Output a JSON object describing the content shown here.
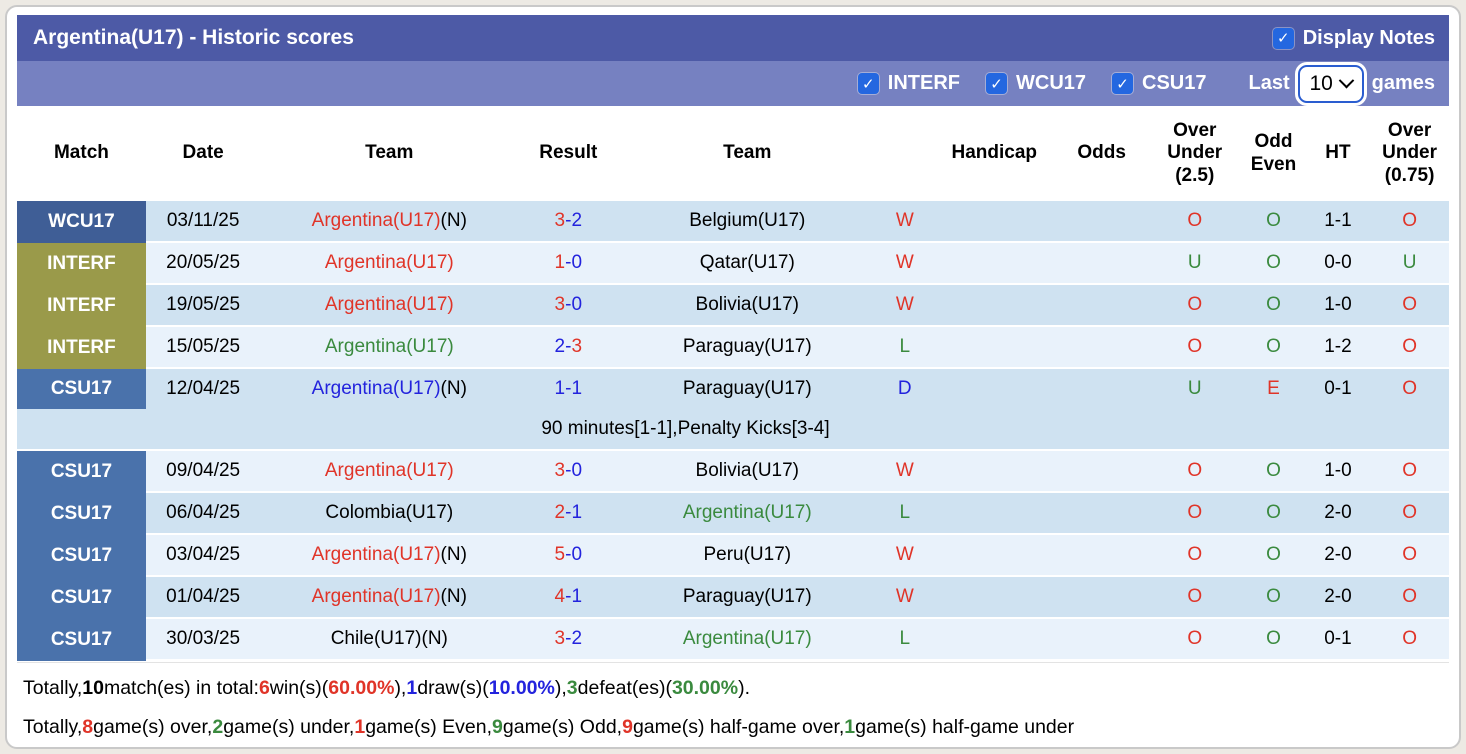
{
  "header": {
    "title": "Argentina(U17) - Historic scores",
    "display_notes_label": "Display Notes"
  },
  "filter_bar": {
    "checkboxes": [
      {
        "label": "INTERF",
        "checked": true
      },
      {
        "label": "WCU17",
        "checked": true
      },
      {
        "label": "CSU17",
        "checked": true
      }
    ],
    "last_label": "Last",
    "games_count": "10",
    "games_label": "games"
  },
  "icons": {
    "checkmark": "✓"
  },
  "colors": {
    "bar_top": "#4d5aa6",
    "bar_filters": "#7681c1",
    "checkbox_blue": "#2467e0",
    "row_dark": "#cfe2f1",
    "row_light": "#e9f2fb",
    "badges": {
      "WCU17": "#3f5e96",
      "INTERF": "#9a9a4a",
      "CSU17": "#4a72ab"
    },
    "tokens": {
      "r": "#e03428",
      "g": "#3a8a3e",
      "b": "#2323dd",
      "k": "#000000"
    }
  },
  "table": {
    "headers": [
      "Match",
      "Date",
      "Team",
      "Result",
      "Team",
      "",
      "Handicap",
      "Odds",
      "Over Under (2.5)",
      "Odd Even",
      "HT",
      "Over Under (0.75)"
    ],
    "col_widths": [
      "9%",
      "8%",
      "18%",
      "7%",
      "18%",
      "4%",
      "8.5%",
      "6.5%",
      "6.5%",
      "4.5%",
      "4.5%",
      "5.5%"
    ],
    "rows": [
      {
        "league": "WCU17",
        "date": "03/11/25",
        "home": {
          "name": "Argentina(U17)",
          "suffix": "(N)",
          "color": "r"
        },
        "score": {
          "home": "3",
          "away": "2",
          "home_color": "r",
          "away_color": "b"
        },
        "away": {
          "name": "Belgium(U17)",
          "suffix": "",
          "color": "k"
        },
        "letter": "W",
        "letter_color": "r",
        "handicap": "",
        "odds": "",
        "over_under_25": "O",
        "over_under_25_color": "r",
        "odd_even": "O",
        "odd_even_color": "g",
        "ht": "1-1",
        "over_under_075": "O",
        "over_under_075_color": "r",
        "shade": "dark",
        "note": ""
      },
      {
        "league": "INTERF",
        "date": "20/05/25",
        "home": {
          "name": "Argentina(U17)",
          "suffix": "",
          "color": "r"
        },
        "score": {
          "home": "1",
          "away": "0",
          "home_color": "r",
          "away_color": "b"
        },
        "away": {
          "name": "Qatar(U17)",
          "suffix": "",
          "color": "k"
        },
        "letter": "W",
        "letter_color": "r",
        "handicap": "",
        "odds": "",
        "over_under_25": "U",
        "over_under_25_color": "g",
        "odd_even": "O",
        "odd_even_color": "g",
        "ht": "0-0",
        "over_under_075": "U",
        "over_under_075_color": "g",
        "shade": "light",
        "note": ""
      },
      {
        "league": "INTERF",
        "date": "19/05/25",
        "home": {
          "name": "Argentina(U17)",
          "suffix": "",
          "color": "r"
        },
        "score": {
          "home": "3",
          "away": "0",
          "home_color": "r",
          "away_color": "b"
        },
        "away": {
          "name": "Bolivia(U17)",
          "suffix": "",
          "color": "k"
        },
        "letter": "W",
        "letter_color": "r",
        "handicap": "",
        "odds": "",
        "over_under_25": "O",
        "over_under_25_color": "r",
        "odd_even": "O",
        "odd_even_color": "g",
        "ht": "1-0",
        "over_under_075": "O",
        "over_under_075_color": "r",
        "shade": "dark",
        "note": ""
      },
      {
        "league": "INTERF",
        "date": "15/05/25",
        "home": {
          "name": "Argentina(U17)",
          "suffix": "",
          "color": "g"
        },
        "score": {
          "home": "2",
          "away": "3",
          "home_color": "b",
          "away_color": "r"
        },
        "away": {
          "name": "Paraguay(U17)",
          "suffix": "",
          "color": "k"
        },
        "letter": "L",
        "letter_color": "g",
        "handicap": "",
        "odds": "",
        "over_under_25": "O",
        "over_under_25_color": "r",
        "odd_even": "O",
        "odd_even_color": "g",
        "ht": "1-2",
        "over_under_075": "O",
        "over_under_075_color": "r",
        "shade": "light",
        "note": ""
      },
      {
        "league": "CSU17",
        "date": "12/04/25",
        "home": {
          "name": "Argentina(U17)",
          "suffix": "(N)",
          "color": "b"
        },
        "score": {
          "home": "1",
          "away": "1",
          "home_color": "b",
          "away_color": "b"
        },
        "away": {
          "name": "Paraguay(U17)",
          "suffix": "",
          "color": "k"
        },
        "letter": "D",
        "letter_color": "b",
        "handicap": "",
        "odds": "",
        "over_under_25": "U",
        "over_under_25_color": "g",
        "odd_even": "E",
        "odd_even_color": "r",
        "ht": "0-1",
        "over_under_075": "O",
        "over_under_075_color": "r",
        "shade": "dark",
        "note": "90 minutes[1-1],Penalty Kicks[3-4]"
      },
      {
        "league": "CSU17",
        "date": "09/04/25",
        "home": {
          "name": "Argentina(U17)",
          "suffix": "",
          "color": "r"
        },
        "score": {
          "home": "3",
          "away": "0",
          "home_color": "r",
          "away_color": "b"
        },
        "away": {
          "name": "Bolivia(U17)",
          "suffix": "",
          "color": "k"
        },
        "letter": "W",
        "letter_color": "r",
        "handicap": "",
        "odds": "",
        "over_under_25": "O",
        "over_under_25_color": "r",
        "odd_even": "O",
        "odd_even_color": "g",
        "ht": "1-0",
        "over_under_075": "O",
        "over_under_075_color": "r",
        "shade": "light",
        "note": ""
      },
      {
        "league": "CSU17",
        "date": "06/04/25",
        "home": {
          "name": "Colombia(U17)",
          "suffix": "",
          "color": "k"
        },
        "score": {
          "home": "2",
          "away": "1",
          "home_color": "r",
          "away_color": "b"
        },
        "away": {
          "name": "Argentina(U17)",
          "suffix": "",
          "color": "g"
        },
        "letter": "L",
        "letter_color": "g",
        "handicap": "",
        "odds": "",
        "over_under_25": "O",
        "over_under_25_color": "r",
        "odd_even": "O",
        "odd_even_color": "g",
        "ht": "2-0",
        "over_under_075": "O",
        "over_under_075_color": "r",
        "shade": "dark",
        "note": ""
      },
      {
        "league": "CSU17",
        "date": "03/04/25",
        "home": {
          "name": "Argentina(U17)",
          "suffix": "(N)",
          "color": "r"
        },
        "score": {
          "home": "5",
          "away": "0",
          "home_color": "r",
          "away_color": "b"
        },
        "away": {
          "name": "Peru(U17)",
          "suffix": "",
          "color": "k"
        },
        "letter": "W",
        "letter_color": "r",
        "handicap": "",
        "odds": "",
        "over_under_25": "O",
        "over_under_25_color": "r",
        "odd_even": "O",
        "odd_even_color": "g",
        "ht": "2-0",
        "over_under_075": "O",
        "over_under_075_color": "r",
        "shade": "light",
        "note": ""
      },
      {
        "league": "CSU17",
        "date": "01/04/25",
        "home": {
          "name": "Argentina(U17)",
          "suffix": "(N)",
          "color": "r"
        },
        "score": {
          "home": "4",
          "away": "1",
          "home_color": "r",
          "away_color": "b"
        },
        "away": {
          "name": "Paraguay(U17)",
          "suffix": "",
          "color": "k"
        },
        "letter": "W",
        "letter_color": "r",
        "handicap": "",
        "odds": "",
        "over_under_25": "O",
        "over_under_25_color": "r",
        "odd_even": "O",
        "odd_even_color": "g",
        "ht": "2-0",
        "over_under_075": "O",
        "over_under_075_color": "r",
        "shade": "dark",
        "note": ""
      },
      {
        "league": "CSU17",
        "date": "30/03/25",
        "home": {
          "name": "Chile(U17)",
          "suffix": "(N)",
          "color": "k"
        },
        "score": {
          "home": "3",
          "away": "2",
          "home_color": "r",
          "away_color": "b"
        },
        "away": {
          "name": "Argentina(U17)",
          "suffix": "",
          "color": "g"
        },
        "letter": "L",
        "letter_color": "g",
        "handicap": "",
        "odds": "",
        "over_under_25": "O",
        "over_under_25_color": "r",
        "odd_even": "O",
        "odd_even_color": "g",
        "ht": "0-1",
        "over_under_075": "O",
        "over_under_075_color": "r",
        "shade": "light",
        "note": ""
      }
    ]
  },
  "footer": {
    "line1": [
      {
        "t": "Totally, ",
        "c": "k"
      },
      {
        "t": "10",
        "c": "kb"
      },
      {
        "t": " match(es) in total: ",
        "c": "k"
      },
      {
        "t": "6",
        "c": "r"
      },
      {
        "t": " win(s)(",
        "c": "k"
      },
      {
        "t": "60.00%",
        "c": "r"
      },
      {
        "t": "), ",
        "c": "k"
      },
      {
        "t": "1",
        "c": "b"
      },
      {
        "t": " draw(s)(",
        "c": "k"
      },
      {
        "t": "10.00%",
        "c": "b"
      },
      {
        "t": "), ",
        "c": "k"
      },
      {
        "t": "3",
        "c": "g"
      },
      {
        "t": " defeat(es)(",
        "c": "k"
      },
      {
        "t": "30.00%",
        "c": "g"
      },
      {
        "t": ").",
        "c": "k"
      }
    ],
    "line2": [
      {
        "t": "Totally, ",
        "c": "k"
      },
      {
        "t": "8",
        "c": "r"
      },
      {
        "t": " game(s) over, ",
        "c": "k"
      },
      {
        "t": "2",
        "c": "g"
      },
      {
        "t": " game(s) under, ",
        "c": "k"
      },
      {
        "t": "1",
        "c": "r"
      },
      {
        "t": " game(s) Even, ",
        "c": "k"
      },
      {
        "t": "9",
        "c": "g"
      },
      {
        "t": " game(s) Odd, ",
        "c": "k"
      },
      {
        "t": "9",
        "c": "r"
      },
      {
        "t": " game(s) half-game over, ",
        "c": "k"
      },
      {
        "t": "1",
        "c": "g"
      },
      {
        "t": " game(s) half-game under",
        "c": "k"
      }
    ]
  }
}
